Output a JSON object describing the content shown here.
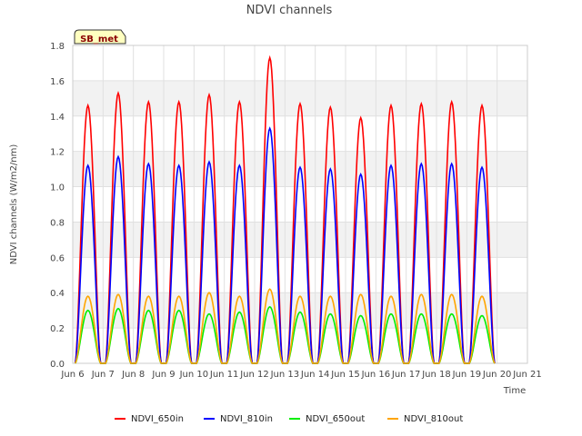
{
  "chart_data": {
    "type": "line",
    "title": "NDVI channels",
    "xlabel": "Time",
    "ylabel": "NDVI channels (W/m2/nm)",
    "site_label": "SB_met",
    "x_ticks": [
      "Jun 6",
      "Jun 7",
      "Jun 8",
      "Jun 9",
      "Jun 10",
      "Jun 11",
      "Jun 12",
      "Jun 13",
      "Jun 14",
      "Jun 15",
      "Jun 16",
      "Jun 17",
      "Jun 18",
      "Jun 19",
      "Jun 20",
      "Jun 21"
    ],
    "xlim_days": [
      6,
      21
    ],
    "ylim": [
      0.0,
      1.8
    ],
    "y_ticks": [
      "0.0",
      "0.2",
      "0.4",
      "0.6",
      "0.8",
      "1.0",
      "1.2",
      "1.4",
      "1.6",
      "1.8"
    ],
    "day_centers": [
      6.5,
      7.5,
      8.5,
      9.5,
      10.5,
      11.5,
      12.5,
      13.5,
      14.5,
      15.5,
      16.5,
      17.5,
      18.5,
      19.5
    ],
    "series": [
      {
        "name": "NDVI_650in",
        "color": "#ff0000",
        "daily_peaks": [
          1.46,
          1.53,
          1.48,
          1.48,
          1.52,
          1.48,
          1.73,
          1.47,
          1.45,
          1.39,
          1.46,
          1.47,
          1.48,
          1.46
        ]
      },
      {
        "name": "NDVI_810in",
        "color": "#0000ff",
        "daily_peaks": [
          1.12,
          1.17,
          1.13,
          1.12,
          1.14,
          1.12,
          1.33,
          1.11,
          1.1,
          1.07,
          1.12,
          1.13,
          1.13,
          1.11
        ]
      },
      {
        "name": "NDVI_650out",
        "color": "#00ee00",
        "daily_peaks": [
          0.3,
          0.31,
          0.3,
          0.3,
          0.28,
          0.29,
          0.32,
          0.29,
          0.28,
          0.27,
          0.28,
          0.28,
          0.28,
          0.27
        ]
      },
      {
        "name": "NDVI_810out",
        "color": "#ffa500",
        "daily_peaks": [
          0.38,
          0.39,
          0.38,
          0.38,
          0.4,
          0.38,
          0.42,
          0.38,
          0.38,
          0.39,
          0.38,
          0.39,
          0.39,
          0.38
        ]
      }
    ]
  }
}
